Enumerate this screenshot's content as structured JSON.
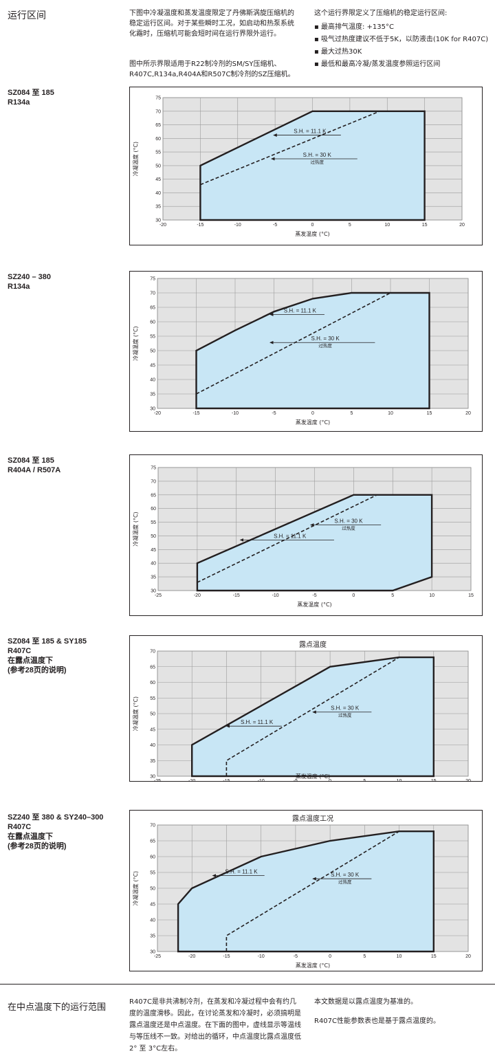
{
  "page": {
    "title": "运行区间",
    "intro_1": "下图中冷凝温度和蒸发温度限定了丹佛斯涡旋压缩机的稳定运行区间。对于某些瞬时工况，如启动和热泵系统化霜时，压缩机可能会短时间在运行界限外运行。",
    "intro_2": "图中所示界限适用于R22制冷剂的SM/SY压缩机、R407C,R134a,R404A和R507C制冷剂的SZ压缩机。",
    "limits_intro": "这个运行界限定义了压缩机的稳定运行区间:",
    "limits": [
      "最高排气温度: +135°C",
      "吸气过热度建议不低于5K，以防液击(10K for R407C)",
      "最大过热30K",
      "最低和最高冷凝/蒸发温度参照运行区间"
    ],
    "footer_title": "在中点温度下的运行范围",
    "footer_text": "R407C是非共沸制冷剂，在蒸发和冷凝过程中会有约几度的温度滑移。因此，在讨论蒸发和冷凝时，必须搞明是露点温度还是中点温度。在下面的图中，虚线显示等温线与等压线不一致。对给出的循环，中点温度比露点温度低2° 至 3°C左右。",
    "footer_note_1": "本文数据是以露点温度为基准的。",
    "footer_note_2": "R407C性能参数表也是基于露点温度的。"
  },
  "colors": {
    "envelope_fill": "#c8e6f5",
    "plot_bg": "#e3e3e3",
    "grid": "#9a9a9a",
    "line": "#231f20"
  },
  "chart_data": [
    {
      "type": "line",
      "label_lines": [
        "SZ084 至 185",
        "R134a"
      ],
      "title": "",
      "xlabel": "蒸发温度 (°C)",
      "ylabel": "冷凝温度 (°C)",
      "xlim": [
        -20,
        20
      ],
      "ylim": [
        30,
        75
      ],
      "xticks": [
        -20,
        -15,
        -10,
        -5,
        0,
        5,
        10,
        15,
        20
      ],
      "yticks": [
        30,
        35,
        40,
        45,
        50,
        55,
        60,
        65,
        70,
        75
      ],
      "envelope": [
        [
          -15,
          30
        ],
        [
          -15,
          50
        ],
        [
          0,
          70
        ],
        [
          15,
          70
        ],
        [
          15,
          30
        ]
      ],
      "dashed": [
        [
          -15,
          43
        ],
        [
          9,
          70
        ]
      ],
      "annotations": [
        {
          "text": "S.H. = 11.1 K",
          "sub": "",
          "arrow": [
            [
              3.8,
              61.2
            ],
            [
              -5.2,
              61.2
            ]
          ]
        },
        {
          "text": "S.H. = 30 K",
          "sub": "过热度",
          "arrow": [
            [
              6,
              52.5
            ],
            [
              -5.5,
              52.5
            ]
          ]
        }
      ]
    },
    {
      "type": "line",
      "label_lines": [
        "SZ240 – 380",
        "R134a"
      ],
      "title": "",
      "xlabel": "蒸发温度 (°C)",
      "ylabel": "冷凝温度 (°C)",
      "xlim": [
        -20,
        20
      ],
      "ylim": [
        30,
        75
      ],
      "xticks": [
        -20,
        -15,
        -10,
        -5,
        0,
        5,
        10,
        15,
        20
      ],
      "yticks": [
        30,
        35,
        40,
        45,
        50,
        55,
        60,
        65,
        70,
        75
      ],
      "envelope": [
        [
          -15,
          30
        ],
        [
          -15,
          50
        ],
        [
          -10,
          57
        ],
        [
          -5,
          63.5
        ],
        [
          0,
          68
        ],
        [
          5,
          70
        ],
        [
          15,
          70
        ],
        [
          15,
          30
        ]
      ],
      "dashed": [
        [
          -15,
          35
        ],
        [
          10,
          70
        ]
      ],
      "annotations": [
        {
          "text": "S.H. = 11.1 K",
          "sub": "",
          "arrow": [
            [
              1.5,
              62.5
            ],
            [
              -5.5,
              62.5
            ]
          ]
        },
        {
          "text": "S.H. = 30 K",
          "sub": "过热度",
          "arrow": [
            [
              8,
              52.8
            ],
            [
              -5.5,
              52.8
            ]
          ]
        }
      ]
    },
    {
      "type": "line",
      "label_lines": [
        "SZ084 至 185",
        "R404A / R507A"
      ],
      "title": "",
      "xlabel": "蒸发温度 (°C)",
      "ylabel": "冷凝温度 (°C)",
      "xlim": [
        -25,
        15
      ],
      "ylim": [
        30,
        75
      ],
      "xticks": [
        -25,
        -20,
        -15,
        -10,
        -5,
        0,
        5,
        10,
        15
      ],
      "yticks": [
        30,
        35,
        40,
        45,
        50,
        55,
        60,
        65,
        70,
        75
      ],
      "envelope": [
        [
          -20,
          30
        ],
        [
          -20,
          40
        ],
        [
          0,
          65
        ],
        [
          10,
          65
        ],
        [
          10,
          35
        ],
        [
          5,
          30
        ]
      ],
      "dashed": [
        [
          -20,
          33
        ],
        [
          3,
          65
        ]
      ],
      "annotations": [
        {
          "text": "S.H. = 30 K",
          "sub": "过热度",
          "arrow": [
            [
              3.5,
              54
            ],
            [
              -5.5,
              54
            ]
          ]
        },
        {
          "text": "S.H. = 11.1 K",
          "sub": "",
          "arrow": [
            [
              -2.5,
              48.5
            ],
            [
              -14.5,
              48.5
            ]
          ]
        }
      ]
    },
    {
      "type": "line",
      "label_lines": [
        "SZ084 至 185 & SY185",
        "R407C",
        "在露点温度下",
        "(参考28页的说明)"
      ],
      "title": "露点温度",
      "xlabel": "蒸发温度 (°C)",
      "ylabel": "冷凝温度 (°C)",
      "xlim": [
        -25,
        20
      ],
      "ylim": [
        30,
        70
      ],
      "xticks": [
        -25,
        -20,
        -15,
        -10,
        -5,
        0,
        5,
        10,
        15,
        20
      ],
      "yticks": [
        30,
        35,
        40,
        45,
        50,
        55,
        60,
        65,
        70
      ],
      "envelope": [
        [
          -20,
          30
        ],
        [
          -20,
          40
        ],
        [
          0,
          65
        ],
        [
          10,
          68
        ],
        [
          15,
          68
        ],
        [
          15,
          30
        ]
      ],
      "dashed": [
        [
          -15,
          30
        ],
        [
          -15,
          35
        ],
        [
          10,
          68
        ]
      ],
      "annotations": [
        {
          "text": "S.H. = 30 K",
          "sub": "过热度",
          "arrow": [
            [
              6,
              50.5
            ],
            [
              -2.5,
              50.5
            ]
          ]
        },
        {
          "text": "S.H. = 11.1 K",
          "sub": "",
          "arrow": [
            [
              -7,
              46
            ],
            [
              -15,
              46
            ]
          ]
        }
      ]
    },
    {
      "type": "line",
      "label_lines": [
        "SZ240 至 380 & SY240–300",
        "R407C",
        "在露点温度下",
        "(参考28页的说明)"
      ],
      "title": "露点温度工况",
      "xlabel": "蒸发温度 (°C)",
      "ylabel": "冷凝温度 (°C)",
      "xlim": [
        -25,
        20
      ],
      "ylim": [
        30,
        70
      ],
      "xticks": [
        -25,
        -20,
        -15,
        -10,
        -5,
        0,
        5,
        10,
        15,
        20
      ],
      "yticks": [
        30,
        35,
        40,
        45,
        50,
        55,
        60,
        65,
        70
      ],
      "envelope": [
        [
          -22,
          30
        ],
        [
          -22,
          45
        ],
        [
          -20,
          50
        ],
        [
          -10,
          60
        ],
        [
          0,
          65
        ],
        [
          10,
          68
        ],
        [
          15,
          68
        ],
        [
          15,
          30
        ]
      ],
      "dashed": [
        [
          -15,
          30
        ],
        [
          -15,
          35
        ],
        [
          10,
          68
        ]
      ],
      "annotations": [
        {
          "text": "S.H. = 11.1 K",
          "sub": "",
          "arrow": [
            [
              -9.5,
              54
            ],
            [
              -17,
              54
            ]
          ]
        },
        {
          "text": "S.H. = 30 K",
          "sub": "过热度",
          "arrow": [
            [
              6,
              53
            ],
            [
              -2.5,
              53
            ]
          ]
        }
      ]
    }
  ]
}
